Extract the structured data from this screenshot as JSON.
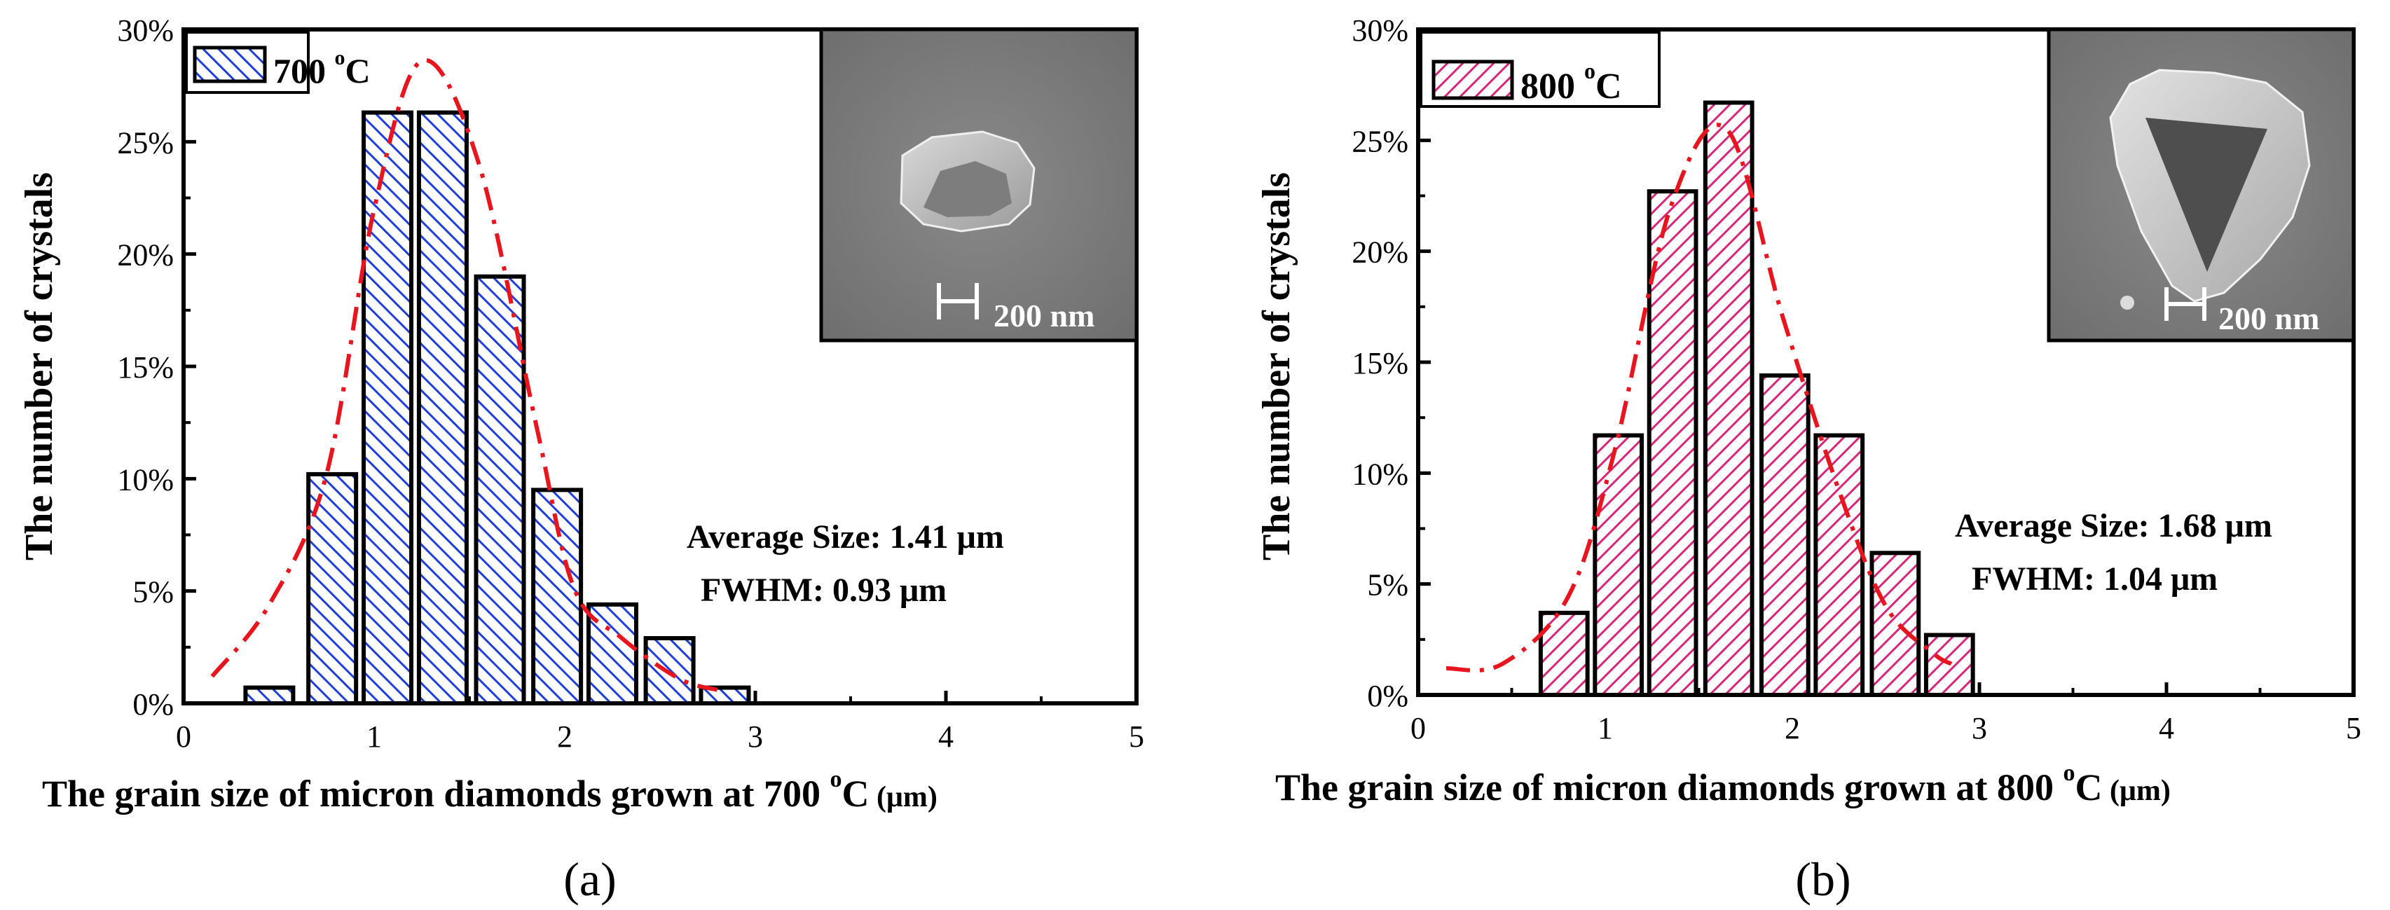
{
  "chart_data": [
    {
      "type": "bar",
      "panel_label": "(a)",
      "xlabel": "The grain size of micron diamonds grown at 700 °C (μm)",
      "xlabel_main": "The grain size of micron diamonds grown at 700 ",
      "xlabel_degree": "o",
      "xlabel_unit_c": "C",
      "xlabel_unit": " (μm)",
      "ylabel": "The number of crystals",
      "xlim": [
        0,
        5
      ],
      "ylim": [
        0,
        30
      ],
      "x_ticks": [
        "0",
        "1",
        "2",
        "3",
        "4",
        "5"
      ],
      "y_ticks": [
        "0%",
        "5%",
        "10%",
        "15%",
        "20%",
        "25%",
        "30%"
      ],
      "legend": {
        "label": "700 °C",
        "text_main": "700 ",
        "text_degree": "o",
        "text_unit": "C",
        "position": "top-left"
      },
      "bar_width": 0.25,
      "series": [
        {
          "name": "700 °C",
          "x": [
            0.45,
            0.78,
            1.07,
            1.36,
            1.66,
            1.96,
            2.25,
            2.55,
            2.84
          ],
          "values": [
            0.7,
            10.2,
            26.3,
            26.3,
            19.0,
            9.5,
            4.4,
            2.9,
            0.7
          ],
          "fill_color": "#1f3fd6",
          "pattern": "backslash-hatch"
        }
      ],
      "fit_curve": {
        "x": [
          0.15,
          0.45,
          0.75,
          1.0,
          1.25,
          1.55,
          1.85,
          2.05,
          2.3,
          2.6,
          2.8
        ],
        "y": [
          1.2,
          4.4,
          10.2,
          22.0,
          28.6,
          24.0,
          12.4,
          5.1,
          2.9,
          1.1,
          0.6
        ],
        "color": "#e8141e",
        "style": "dash-dot"
      },
      "annotations": [
        "Average Size: 1.41 μm",
        "FWHM: 0.93 μm"
      ],
      "inset_scale_bar": "200 nm",
      "inset_shape": "oval"
    },
    {
      "type": "bar",
      "panel_label": "(b)",
      "xlabel": "The grain size of micron diamonds grown at 800 °C (μm)",
      "xlabel_main": "The grain size of micron diamonds grown at 800 ",
      "xlabel_degree": "o",
      "xlabel_unit_c": "C",
      "xlabel_unit": " (μm)",
      "ylabel": "The number of crystals",
      "xlim": [
        0,
        5
      ],
      "ylim": [
        0,
        30
      ],
      "x_ticks": [
        "0",
        "1",
        "2",
        "3",
        "4",
        "5"
      ],
      "y_ticks": [
        "0%",
        "5%",
        "10%",
        "15%",
        "20%",
        "25%",
        "30%"
      ],
      "legend": {
        "label": "800 °C",
        "text_main": "800 ",
        "text_degree": "o",
        "text_unit": "C",
        "position": "top-left"
      },
      "bar_width": 0.25,
      "series": [
        {
          "name": "800 °C",
          "x": [
            0.78,
            1.07,
            1.36,
            1.66,
            1.96,
            2.25,
            2.55,
            2.84
          ],
          "values": [
            3.7,
            11.7,
            22.7,
            26.7,
            14.4,
            11.7,
            6.4,
            2.7
          ],
          "fill_color": "#d6287a",
          "pattern": "slash-hatch"
        }
      ],
      "fit_curve": {
        "x": [
          0.15,
          0.45,
          0.8,
          1.05,
          1.35,
          1.65,
          1.95,
          2.25,
          2.5,
          2.75,
          2.85
        ],
        "y": [
          1.2,
          1.4,
          4.4,
          11.0,
          22.0,
          25.5,
          17.0,
          9.2,
          4.0,
          1.9,
          1.4
        ],
        "color": "#e8141e",
        "style": "dash-dot"
      },
      "annotations": [
        "Average Size: 1.68 μm",
        "FWHM: 1.04 μm"
      ],
      "inset_scale_bar": "200 nm",
      "inset_shape": "triangle"
    }
  ]
}
